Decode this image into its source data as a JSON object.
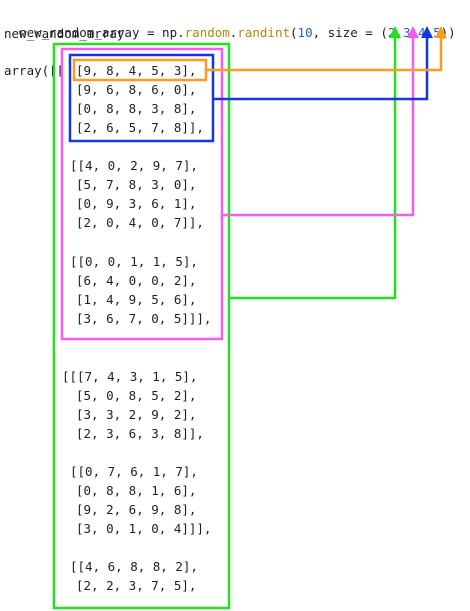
{
  "code": {
    "line1": {
      "lhs": "new_random_array = np.",
      "random": "random",
      "dot": ".",
      "randint": "randint",
      "open": "(",
      "n10": "10",
      "mid": ", size = (",
      "d2": "2",
      "c1": ",",
      "d3": "3",
      "c2": ",",
      "d4": "4",
      "c3": ",",
      "d5": "5",
      "close": "))"
    },
    "line2": "new_random_array"
  },
  "output": {
    "prefix": "array([[",
    "rows": [
      "[9, 8, 4, 5, 3],",
      "[9, 6, 8, 6, 0],",
      "[0, 8, 8, 3, 8],",
      "[2, 6, 5, 7, 8]],",
      "[[4, 0, 2, 9, 7],",
      "[5, 7, 8, 3, 0],",
      "[0, 9, 3, 6, 1],",
      "[2, 0, 4, 0, 7]],",
      "[[0, 0, 1, 1, 5],",
      "[6, 4, 0, 0, 2],",
      "[1, 4, 9, 5, 6],",
      "[3, 6, 7, 0, 5]]],",
      "[[[7, 4, 3, 1, 5],",
      "[5, 0, 8, 5, 2],",
      "[3, 3, 2, 9, 2],",
      "[2, 3, 6, 3, 8]],",
      "[[0, 7, 6, 1, 7],",
      "[0, 8, 8, 1, 6],",
      "[9, 2, 6, 9, 8],",
      "[3, 0, 1, 0, 4]]],",
      "[[4, 6, 8, 8, 2],",
      "[2, 2, 3, 7, 5],"
    ]
  },
  "annotations": {
    "colors": {
      "green": "#22e01f",
      "magenta": "#f25cf0",
      "blue": "#1335e6",
      "orange": "#ff9a1a"
    },
    "boxes": [
      {
        "name": "green-box",
        "color": "green",
        "links_to": "2"
      },
      {
        "name": "magenta-box",
        "color": "magenta",
        "links_to": "3"
      },
      {
        "name": "blue-box",
        "color": "blue",
        "links_to": "4"
      },
      {
        "name": "orange-box",
        "color": "orange",
        "links_to": "5"
      }
    ]
  }
}
